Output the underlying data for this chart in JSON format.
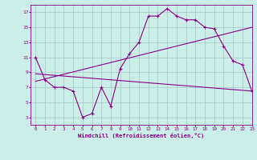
{
  "xlabel": "Windchill (Refroidissement éolien,°C)",
  "bg_color": "#cceee8",
  "grid_color": "#aacccc",
  "line_color": "#880088",
  "main_line_x": [
    0,
    1,
    2,
    3,
    4,
    5,
    6,
    7,
    8,
    9,
    10,
    11,
    12,
    13,
    14,
    15,
    16,
    17,
    18,
    19,
    20,
    21,
    22,
    23
  ],
  "main_line_y": [
    11,
    8,
    7,
    7,
    6.5,
    3,
    3.5,
    7,
    4.5,
    9.5,
    11.5,
    13,
    16.5,
    16.5,
    17.5,
    16.5,
    16,
    16,
    15,
    14.8,
    12.5,
    10.5,
    10,
    6.5
  ],
  "line2_x": [
    0,
    23
  ],
  "line2_y": [
    8.8,
    6.5
  ],
  "line3_x": [
    0,
    23
  ],
  "line3_y": [
    7.8,
    15.0
  ],
  "xlim": [
    -0.5,
    23
  ],
  "ylim": [
    2,
    18
  ],
  "yticks": [
    3,
    5,
    7,
    9,
    11,
    13,
    15,
    17
  ],
  "xticks": [
    0,
    1,
    2,
    3,
    4,
    5,
    6,
    7,
    8,
    9,
    10,
    11,
    12,
    13,
    14,
    15,
    16,
    17,
    18,
    19,
    20,
    21,
    22,
    23
  ]
}
